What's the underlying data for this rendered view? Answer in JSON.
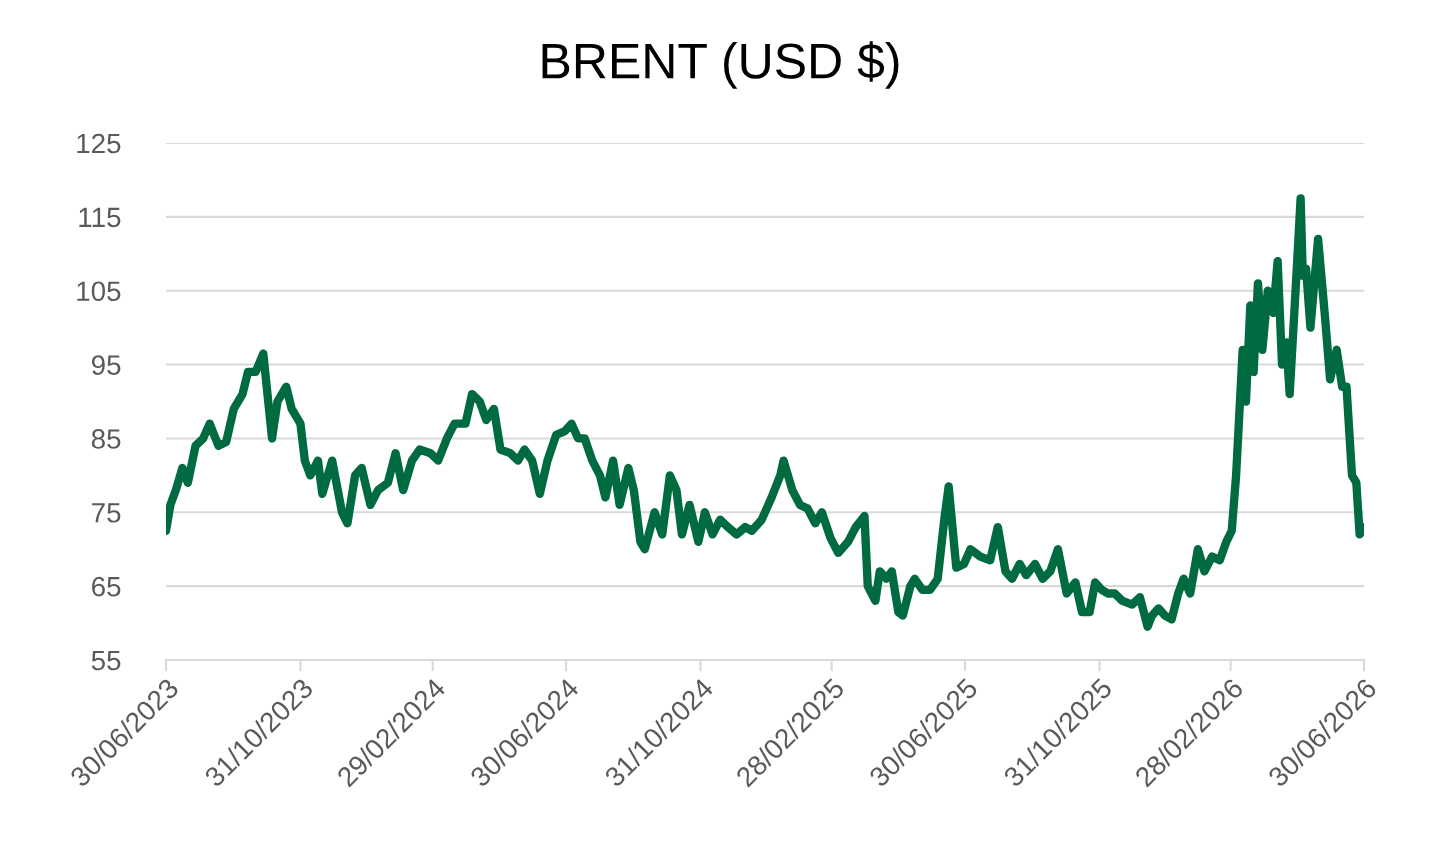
{
  "chart_data": {
    "type": "line",
    "title": "BRENT (USD $)",
    "x": [
      "2023-06-30",
      "2023-07-04",
      "2023-07-09",
      "2023-07-15",
      "2023-07-20",
      "2023-07-27",
      "2023-08-03",
      "2023-08-09",
      "2023-08-17",
      "2023-08-24",
      "2023-08-31",
      "2023-09-08",
      "2023-09-13",
      "2023-09-20",
      "2023-09-27",
      "2023-10-05",
      "2023-10-10",
      "2023-10-18",
      "2023-10-23",
      "2023-10-31",
      "2023-11-04",
      "2023-11-09",
      "2023-11-16",
      "2023-11-20",
      "2023-11-29",
      "2023-12-08",
      "2023-12-13",
      "2023-12-20",
      "2023-12-26",
      "2024-01-03",
      "2024-01-10",
      "2024-01-19",
      "2024-01-26",
      "2024-02-02",
      "2024-02-10",
      "2024-02-17",
      "2024-02-27",
      "2024-03-05",
      "2024-03-13",
      "2024-03-20",
      "2024-03-30",
      "2024-04-05",
      "2024-04-12",
      "2024-04-18",
      "2024-04-25",
      "2024-05-01",
      "2024-05-10",
      "2024-05-17",
      "2024-05-23",
      "2024-05-30",
      "2024-06-06",
      "2024-06-13",
      "2024-06-21",
      "2024-06-29",
      "2024-07-05",
      "2024-07-11",
      "2024-07-17",
      "2024-07-24",
      "2024-07-31",
      "2024-08-05",
      "2024-08-12",
      "2024-08-18",
      "2024-08-26",
      "2024-08-31",
      "2024-09-06",
      "2024-09-10",
      "2024-09-19",
      "2024-09-26",
      "2024-10-03",
      "2024-10-09",
      "2024-10-14",
      "2024-10-21",
      "2024-10-29",
      "2024-11-04",
      "2024-11-11",
      "2024-11-18",
      "2024-11-25",
      "2024-12-03",
      "2024-12-11",
      "2024-12-17",
      "2024-12-26",
      "2025-01-04",
      "2025-01-12",
      "2025-01-15",
      "2025-01-23",
      "2025-01-30",
      "2025-02-06",
      "2025-02-13",
      "2025-02-19",
      "2025-02-27",
      "2025-03-06",
      "2025-03-15",
      "2025-03-22",
      "2025-03-30",
      "2025-04-02",
      "2025-04-09",
      "2025-04-13",
      "2025-04-19",
      "2025-04-24",
      "2025-04-30",
      "2025-05-04",
      "2025-05-11",
      "2025-05-15",
      "2025-05-22",
      "2025-05-29",
      "2025-06-05",
      "2025-06-11",
      "2025-06-15",
      "2025-06-22",
      "2025-06-29",
      "2025-07-05",
      "2025-07-14",
      "2025-07-23",
      "2025-07-30",
      "2025-08-06",
      "2025-08-12",
      "2025-08-19",
      "2025-08-25",
      "2025-09-02",
      "2025-09-09",
      "2025-09-16",
      "2025-09-23",
      "2025-10-01",
      "2025-10-09",
      "2025-10-15",
      "2025-10-22",
      "2025-10-27",
      "2025-11-02",
      "2025-11-08",
      "2025-11-14",
      "2025-11-21",
      "2025-11-30",
      "2025-12-07",
      "2025-12-14",
      "2025-12-18",
      "2025-12-24",
      "2025-12-30",
      "2026-01-05",
      "2026-01-11",
      "2026-01-16",
      "2026-01-22",
      "2026-01-29",
      "2026-02-04",
      "2026-02-11",
      "2026-02-18",
      "2026-02-24",
      "2026-03-01",
      "2026-03-05",
      "2026-03-11",
      "2026-03-14",
      "2026-03-18",
      "2026-03-21",
      "2026-03-25",
      "2026-03-29",
      "2026-04-03",
      "2026-04-08",
      "2026-04-12",
      "2026-04-16",
      "2026-04-20",
      "2026-04-23",
      "2026-04-28",
      "2026-05-01",
      "2026-05-03",
      "2026-05-05",
      "2026-05-08",
      "2026-05-12",
      "2026-05-19",
      "2026-05-25",
      "2026-05-30",
      "2026-06-05",
      "2026-06-10",
      "2026-06-14",
      "2026-06-19",
      "2026-06-23",
      "2026-06-26",
      "2026-06-30"
    ],
    "series": [
      {
        "color": "#006a40",
        "values": [
          72.5,
          76,
          78,
          81,
          79,
          84,
          85,
          87,
          84,
          84.5,
          89,
          91,
          94,
          94,
          96.5,
          85,
          90,
          92,
          89,
          87,
          82,
          80,
          82,
          77.5,
          82,
          75,
          73.5,
          80,
          81,
          76,
          78,
          79,
          83,
          78,
          82,
          83.5,
          83,
          82,
          85,
          87,
          87,
          91,
          90,
          87.5,
          89,
          83.5,
          83,
          82,
          83.5,
          82,
          77.5,
          82,
          85.5,
          86,
          87,
          85,
          85,
          82,
          80,
          77,
          82,
          76,
          81,
          78,
          71,
          70,
          75,
          72,
          80,
          78,
          72,
          76,
          71,
          75,
          72,
          74,
          73,
          72,
          73,
          72.5,
          74,
          77,
          80,
          82,
          78,
          76,
          75.5,
          73.5,
          75,
          71.5,
          69.5,
          71,
          73,
          74.5,
          65,
          63,
          67,
          66,
          67,
          61.5,
          61,
          65,
          66,
          64.5,
          64.5,
          66,
          74,
          78.5,
          67.5,
          68,
          70,
          69,
          68.5,
          73,
          67,
          66,
          68,
          66.5,
          68,
          66,
          67,
          70,
          64,
          65.5,
          61.5,
          61.5,
          65.5,
          64.5,
          64,
          64,
          63,
          62.5,
          63.5,
          59.5,
          61,
          62,
          61,
          60.5,
          64,
          66,
          64,
          70,
          67,
          69,
          68.5,
          71,
          72.5,
          80,
          97,
          90,
          103,
          94,
          106,
          97,
          105,
          102,
          109,
          95,
          98,
          91,
          104,
          112,
          117.5,
          107,
          108,
          100,
          112,
          102,
          93,
          97,
          92,
          92,
          80,
          79,
          72,
          73
        ]
      }
    ],
    "xlim": [
      "2023-06-30",
      "2026-06-30"
    ],
    "xticks": [
      {
        "value": "2023-06-30",
        "label": "30/06/2023"
      },
      {
        "value": "2023-10-31",
        "label": "31/10/2023"
      },
      {
        "value": "2024-02-29",
        "label": "29/02/2024"
      },
      {
        "value": "2024-06-30",
        "label": "30/06/2024"
      },
      {
        "value": "2024-10-31",
        "label": "31/10/2024"
      },
      {
        "value": "2025-02-28",
        "label": "28/02/2025"
      },
      {
        "value": "2025-06-30",
        "label": "30/06/2025"
      },
      {
        "value": "2025-10-31",
        "label": "31/10/2025"
      },
      {
        "value": "2026-02-28",
        "label": "28/02/2026"
      },
      {
        "value": "2026-06-30",
        "label": "30/06/2026"
      }
    ],
    "ylim": [
      55,
      125
    ],
    "yticks": [
      55,
      65,
      75,
      85,
      95,
      105,
      115,
      125
    ],
    "grid": "y",
    "marker": "none",
    "line_style": "solid"
  }
}
